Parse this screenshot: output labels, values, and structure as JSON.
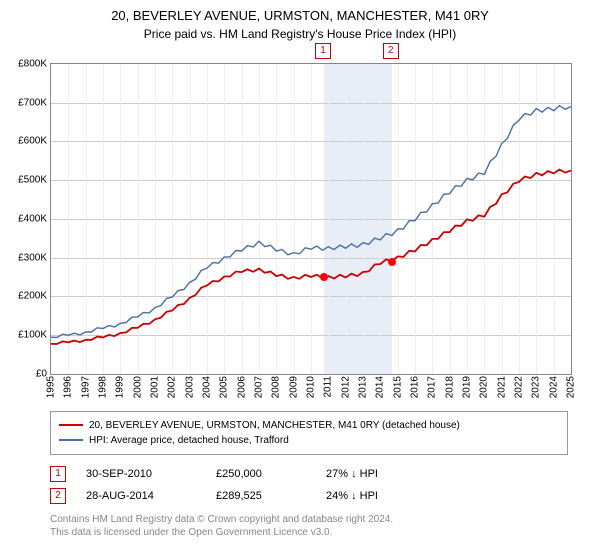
{
  "title": "20, BEVERLEY AVENUE, URMSTON, MANCHESTER, M41 0RY",
  "subtitle": "Price paid vs. HM Land Registry's House Price Index (HPI)",
  "chart": {
    "type": "line",
    "x_start_year": 1995,
    "x_end_year": 2025,
    "x_ticks": [
      1995,
      1996,
      1997,
      1998,
      1999,
      2000,
      2001,
      2002,
      2003,
      2004,
      2005,
      2006,
      2007,
      2008,
      2009,
      2010,
      2011,
      2012,
      2013,
      2014,
      2015,
      2016,
      2017,
      2018,
      2019,
      2020,
      2021,
      2022,
      2023,
      2024,
      2025
    ],
    "ylim": [
      0,
      800000
    ],
    "y_ticks": [
      0,
      100000,
      200000,
      300000,
      400000,
      500000,
      600000,
      700000,
      800000
    ],
    "y_tick_labels": [
      "£0",
      "£100K",
      "£200K",
      "£300K",
      "£400K",
      "£500K",
      "£600K",
      "£700K",
      "£800K"
    ],
    "grid_color": "#cccccc",
    "background_color": "#ffffff",
    "highlight_band_color": "#e8eef8",
    "highlight_band_start": 2010.75,
    "highlight_band_end": 2014.66,
    "series": [
      {
        "id": "property",
        "color": "#cc0000",
        "line_width": 1.8,
        "values_yearly": [
          78,
          82,
          88,
          95,
          105,
          120,
          140,
          165,
          195,
          230,
          250,
          265,
          270,
          255,
          248,
          253,
          250,
          252,
          260,
          287,
          300,
          320,
          345,
          370,
          395,
          410,
          460,
          500,
          515,
          522,
          525
        ]
      },
      {
        "id": "hpi",
        "color": "#4a6fa5",
        "line_width": 1.4,
        "values_yearly": [
          95,
          100,
          108,
          118,
          130,
          148,
          170,
          200,
          235,
          275,
          300,
          320,
          340,
          320,
          310,
          325,
          325,
          328,
          335,
          350,
          370,
          400,
          435,
          470,
          500,
          520,
          590,
          660,
          680,
          685,
          690
        ]
      }
    ],
    "sales": [
      {
        "marker": "1",
        "year": 2010.75,
        "value": 250000
      },
      {
        "marker": "2",
        "year": 2014.66,
        "value": 289525
      }
    ]
  },
  "legend": {
    "items": [
      {
        "color": "#cc0000",
        "label": "20, BEVERLEY AVENUE, URMSTON, MANCHESTER, M41 0RY (detached house)"
      },
      {
        "color": "#4a6fa5",
        "label": "HPI: Average price, detached house, Trafford"
      }
    ]
  },
  "data_rows": [
    {
      "marker": "1",
      "date": "30-SEP-2010",
      "price": "£250,000",
      "pct": "27% ↓ HPI"
    },
    {
      "marker": "2",
      "date": "28-AUG-2014",
      "price": "£289,525",
      "pct": "24% ↓ HPI"
    }
  ],
  "attribution": {
    "line1": "Contains HM Land Registry data © Crown copyright and database right 2024.",
    "line2": "This data is licensed under the Open Government Licence v3.0."
  }
}
